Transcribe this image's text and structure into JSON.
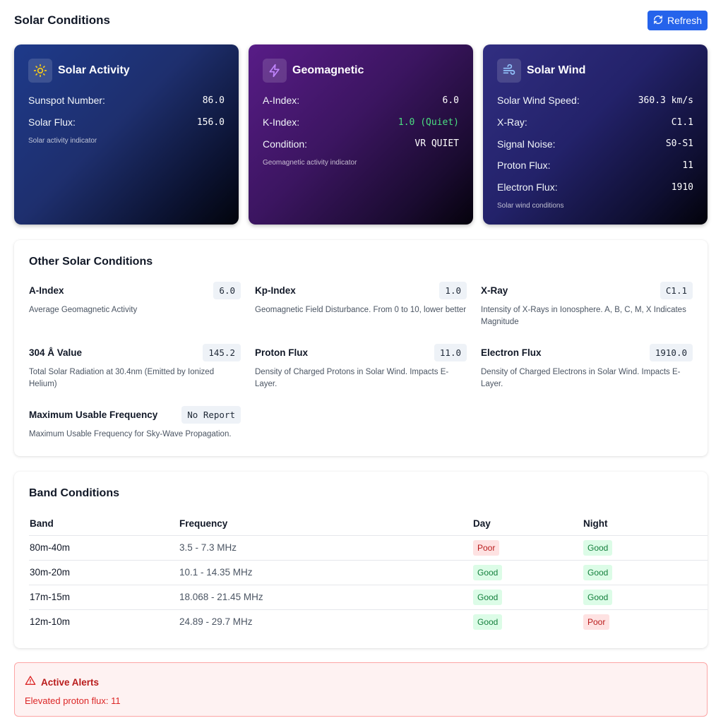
{
  "header": {
    "title": "Solar Conditions",
    "refresh_label": "Refresh"
  },
  "cards": {
    "solar_activity": {
      "title": "Solar Activity",
      "icon": "sun-icon",
      "rows": [
        {
          "label": "Sunspot Number:",
          "value": "86.0"
        },
        {
          "label": "Solar Flux:",
          "value": "156.0"
        }
      ],
      "note": "Solar activity indicator"
    },
    "geomagnetic": {
      "title": "Geomagnetic",
      "icon": "lightning-icon",
      "rows": [
        {
          "label": "A-Index:",
          "value": "6.0"
        },
        {
          "label": "K-Index:",
          "value": "1.0 (Quiet)"
        },
        {
          "label": "Condition:",
          "value": "VR QUIET"
        }
      ],
      "note": "Geomagnetic activity indicator"
    },
    "solar_wind": {
      "title": "Solar Wind",
      "icon": "wind-icon",
      "rows": [
        {
          "label": "Solar Wind Speed:",
          "value": "360.3 km/s"
        },
        {
          "label": "X-Ray:",
          "value": "C1.1"
        },
        {
          "label": "Signal Noise:",
          "value": "S0-S1"
        },
        {
          "label": "Proton Flux:",
          "value": "11"
        },
        {
          "label": "Electron Flux:",
          "value": "1910"
        }
      ],
      "note": "Solar wind conditions"
    }
  },
  "other": {
    "title": "Other Solar Conditions",
    "items": [
      {
        "name": "A-Index",
        "value": "6.0",
        "desc": "Average Geomagnetic Activity"
      },
      {
        "name": "Kp-Index",
        "value": "1.0",
        "desc": "Geomagnetic Field Disturbance. From 0 to 10, lower better"
      },
      {
        "name": "X-Ray",
        "value": "C1.1",
        "desc": "Intensity of X-Rays in Ionosphere. A, B, C, M, X Indicates Magnitude"
      },
      {
        "name": "304 Å Value",
        "value": "145.2",
        "desc": "Total Solar Radiation at 30.4nm (Emitted by Ionized Helium)"
      },
      {
        "name": "Proton Flux",
        "value": "11.0",
        "desc": "Density of Charged Protons in Solar Wind. Impacts E-Layer."
      },
      {
        "name": "Electron Flux",
        "value": "1910.0",
        "desc": "Density of Charged Electrons in Solar Wind. Impacts E-Layer."
      },
      {
        "name": "Maximum Usable Frequency",
        "value": "No Report",
        "desc": "Maximum Usable Frequency for Sky-Wave Propagation."
      }
    ]
  },
  "bands": {
    "title": "Band Conditions",
    "columns": [
      "Band",
      "Frequency",
      "Day",
      "Night"
    ],
    "rows": [
      {
        "band": "80m-40m",
        "frequency": "3.5 - 7.3 MHz",
        "day": "Poor",
        "night": "Good"
      },
      {
        "band": "30m-20m",
        "frequency": "10.1 - 14.35 MHz",
        "day": "Good",
        "night": "Good"
      },
      {
        "band": "17m-15m",
        "frequency": "18.068 - 21.45 MHz",
        "day": "Good",
        "night": "Good"
      },
      {
        "band": "12m-10m",
        "frequency": "24.89 - 29.7 MHz",
        "day": "Good",
        "night": "Poor"
      }
    ]
  },
  "alerts": {
    "title": "Active Alerts",
    "icon": "warning-icon",
    "messages": [
      "Elevated proton flux: 11"
    ]
  },
  "colors": {
    "primary": "#2563eb",
    "good_bg": "#dcfce7",
    "good_text": "#15803d",
    "poor_bg": "#fee2e2",
    "poor_text": "#b91c1c",
    "alert_text": "#dc2626"
  }
}
